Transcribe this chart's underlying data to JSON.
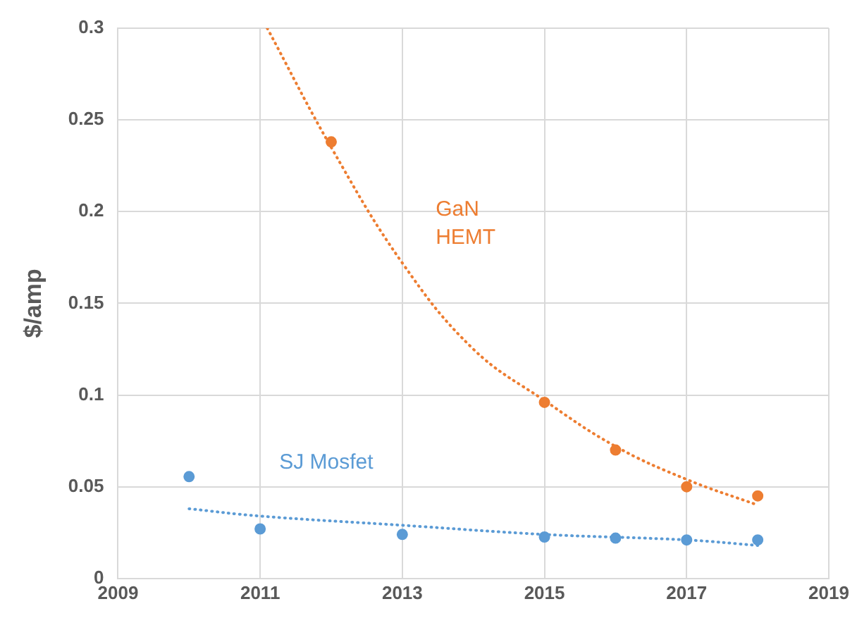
{
  "chart_data": {
    "type": "scatter",
    "ylabel": "$/amp",
    "xlim": [
      2009,
      2019
    ],
    "xticks": [
      2009,
      2011,
      2013,
      2015,
      2017,
      2019
    ],
    "ylim": [
      0,
      0.3
    ],
    "yticks": [
      0,
      0.05,
      0.1,
      0.15,
      0.2,
      0.25,
      0.3
    ],
    "grid": true,
    "legend": false,
    "marker": "circle",
    "series": [
      {
        "name": "GaN\nHEMT",
        "color": "#ed7d31",
        "x": [
          2012,
          2015,
          2016,
          2017,
          2018
        ],
        "values": [
          0.238,
          0.096,
          0.07,
          0.05,
          0.045
        ]
      },
      {
        "name": "SJ Mosfet",
        "color": "#5b9bd5",
        "x": [
          2010,
          2011,
          2013,
          2015,
          2016,
          2017,
          2018
        ],
        "values": [
          0.0555,
          0.027,
          0.024,
          0.0226,
          0.022,
          0.021,
          0.021
        ]
      },
      {
        "type": "line",
        "line_style": "dotted",
        "marker": "none",
        "color": "#ed7d31",
        "x": [
          2011.1,
          2012,
          2013,
          2014,
          2015,
          2016,
          2017,
          2018
        ],
        "values": [
          0.3,
          0.235,
          0.172,
          0.125,
          0.097,
          0.072,
          0.054,
          0.04
        ]
      },
      {
        "type": "line",
        "line_style": "dotted",
        "marker": "none",
        "color": "#5b9bd5",
        "x": [
          2010,
          2011,
          2013,
          2015,
          2017,
          2018
        ],
        "values": [
          0.038,
          0.034,
          0.029,
          0.024,
          0.021,
          0.018
        ]
      }
    ]
  }
}
